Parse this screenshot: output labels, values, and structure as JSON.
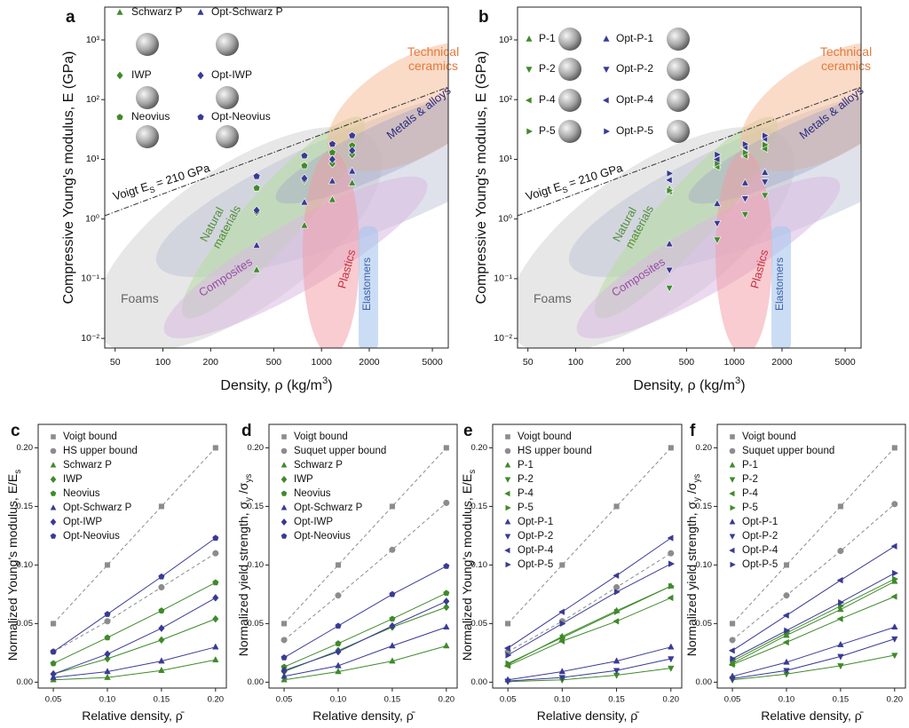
{
  "chart_data": [
    {
      "type": "scatter",
      "panel": "a",
      "xlabel": [
        "Density, ρ (kg/m",
        "3",
        ")"
      ],
      "ylabel": "Compressive Young's modulus, E (GPa)",
      "xscale": "log",
      "yscale": "log",
      "xlim": [
        43,
        6300
      ],
      "ylim": [
        0.0069,
        3550
      ],
      "xticks": [
        50,
        100,
        200,
        500,
        1000,
        2000,
        5000
      ],
      "yticks": [
        {
          "value": 0.01,
          "label": "10⁻²"
        },
        {
          "value": 0.1,
          "label": "10⁻¹"
        },
        {
          "value": 1,
          "label": "10⁰"
        },
        {
          "value": 10,
          "label": "10¹"
        },
        {
          "value": 100,
          "label": "10²"
        },
        {
          "value": 1000,
          "label": "10³"
        }
      ],
      "voigt_label": [
        "Voigt E",
        "S",
        " = 210 GPa"
      ],
      "annotations": [
        [
          "Foams"
        ],
        [
          "Natural",
          "materials"
        ],
        [
          "Composites"
        ],
        [
          "Plastics"
        ],
        [
          "Elastomers"
        ],
        [
          "Metals & alloys"
        ],
        [
          "Technical",
          "ceramics"
        ]
      ],
      "x": [
        390,
        780,
        1170,
        1560
      ],
      "series": [
        {
          "name": "Schwarz P",
          "color": "#3f8a2a",
          "marker": "triangle-up",
          "values": [
            0.14,
            0.78,
            2.1,
            4.0
          ]
        },
        {
          "name": "IWP",
          "color": "#3f8a2a",
          "marker": "diamond",
          "values": [
            1.3,
            4.5,
            8.5,
            12
          ]
        },
        {
          "name": "Neovius",
          "color": "#3f8a2a",
          "marker": "pentagon",
          "values": [
            3.3,
            7.8,
            13,
            17
          ]
        },
        {
          "name": "Opt-Schwarz P",
          "color": "#3a3a96",
          "marker": "triangle-up",
          "values": [
            0.36,
            1.9,
            4.3,
            6.3
          ]
        },
        {
          "name": "Opt-IWP",
          "color": "#3a3a96",
          "marker": "diamond",
          "values": [
            1.4,
            4.8,
            10,
            14
          ]
        },
        {
          "name": "Opt-Neovius",
          "color": "#3a3a96",
          "marker": "pentagon",
          "values": [
            5.2,
            11.5,
            18,
            25
          ]
        }
      ]
    },
    {
      "type": "scatter",
      "panel": "b",
      "xlabel": [
        "Density, ρ (kg/m",
        "3",
        ")"
      ],
      "ylabel": "Compressive Young's modulus, E (GPa)",
      "xscale": "log",
      "yscale": "log",
      "xlim": [
        43,
        6300
      ],
      "ylim": [
        0.0069,
        3550
      ],
      "xticks": [
        50,
        100,
        200,
        500,
        1000,
        2000,
        5000
      ],
      "yticks": [
        {
          "value": 0.01,
          "label": "10⁻²"
        },
        {
          "value": 0.1,
          "label": "10⁻¹"
        },
        {
          "value": 1,
          "label": "10⁰"
        },
        {
          "value": 10,
          "label": "10¹"
        },
        {
          "value": 100,
          "label": "10²"
        },
        {
          "value": 1000,
          "label": "10³"
        }
      ],
      "voigt_label": [
        "Voigt E",
        "S",
        " = 210 GPa"
      ],
      "annotations": [
        [
          "Foams"
        ],
        [
          "Natural",
          "materials"
        ],
        [
          "Composites"
        ],
        [
          "Plastics"
        ],
        [
          "Elastomers"
        ],
        [
          "Metals & alloys"
        ],
        [
          "Technical",
          "ceramics"
        ]
      ],
      "x": [
        390,
        780,
        1170,
        1560
      ],
      "series": [
        {
          "name": "P-1",
          "color": "#3f8a2a",
          "marker": "triangle-up",
          "values": [
            3.2,
            8,
            12,
            17
          ]
        },
        {
          "name": "P-2",
          "color": "#3f8a2a",
          "marker": "triangle-down",
          "values": [
            0.07,
            0.45,
            1.2,
            2.5
          ]
        },
        {
          "name": "P-4",
          "color": "#3f8a2a",
          "marker": "triangle-left",
          "values": [
            2.9,
            7.5,
            11.5,
            15
          ]
        },
        {
          "name": "P-5",
          "color": "#3f8a2a",
          "marker": "triangle-right",
          "values": [
            3.0,
            8.5,
            13,
            17.5
          ]
        },
        {
          "name": "Opt-P-1",
          "color": "#3a3a96",
          "marker": "triangle-up",
          "values": [
            0.38,
            1.8,
            4,
            6
          ]
        },
        {
          "name": "Opt-P-2",
          "color": "#3a3a96",
          "marker": "triangle-down",
          "values": [
            0.14,
            0.85,
            2.2,
            4.2
          ]
        },
        {
          "name": "Opt-P-4",
          "color": "#3a3a96",
          "marker": "triangle-left",
          "values": [
            4.5,
            10,
            16,
            22
          ]
        },
        {
          "name": "Opt-P-5",
          "color": "#3a3a96",
          "marker": "triangle-right",
          "values": [
            5.8,
            12,
            18,
            25
          ]
        }
      ]
    },
    {
      "type": "line",
      "panel": "c",
      "xlabel": [
        "Relative density, ρ̄"
      ],
      "ylabel": [
        "Normalized Young's modulus, E/E",
        "s"
      ],
      "xlim": [
        0.036,
        0.21
      ],
      "ylim": [
        -0.005,
        0.22
      ],
      "xticks": [
        {
          "value": 0.05,
          "label": "0.05"
        },
        {
          "value": 0.1,
          "label": "0.10"
        },
        {
          "value": 0.15,
          "label": "0.15"
        },
        {
          "value": 0.2,
          "label": "0.20"
        }
      ],
      "yticks": [
        {
          "value": 0,
          "label": "0.00"
        },
        {
          "value": 0.05,
          "label": "0.05"
        },
        {
          "value": 0.1,
          "label": "0.10"
        },
        {
          "value": 0.15,
          "label": "0.15"
        },
        {
          "value": 0.2,
          "label": "0.20"
        }
      ],
      "x": [
        0.05,
        0.1,
        0.15,
        0.2
      ],
      "series": [
        {
          "name": "Voigt bound",
          "color": "#8c8c8c",
          "marker": "square",
          "dashed": true,
          "values": [
            0.05,
            0.1,
            0.15,
            0.2
          ]
        },
        {
          "name": "HS upper bound",
          "color": "#8c8c8c",
          "marker": "circle",
          "dashed": true,
          "values": [
            0.026,
            0.052,
            0.081,
            0.11
          ]
        },
        {
          "name": "Schwarz P",
          "color": "#3f8a2a",
          "marker": "triangle-up",
          "values": [
            0.002,
            0.004,
            0.01,
            0.019
          ]
        },
        {
          "name": "IWP",
          "color": "#3f8a2a",
          "marker": "diamond",
          "values": [
            0.007,
            0.02,
            0.036,
            0.054
          ]
        },
        {
          "name": "Neovius",
          "color": "#3f8a2a",
          "marker": "pentagon",
          "values": [
            0.016,
            0.038,
            0.061,
            0.085
          ]
        },
        {
          "name": "Opt-Schwarz P",
          "color": "#3a3a96",
          "marker": "triangle-up",
          "values": [
            0.004,
            0.009,
            0.018,
            0.03
          ]
        },
        {
          "name": "Opt-IWP",
          "color": "#3a3a96",
          "marker": "diamond",
          "values": [
            0.007,
            0.024,
            0.046,
            0.072
          ]
        },
        {
          "name": "Opt-Neovius",
          "color": "#3a3a96",
          "marker": "pentagon",
          "values": [
            0.026,
            0.058,
            0.09,
            0.123
          ]
        }
      ]
    },
    {
      "type": "line",
      "panel": "d",
      "xlabel": [
        "Relative density, ρ̄"
      ],
      "ylabel": [
        "Normalized yield strength, σ",
        "y",
        " /σ",
        "ys"
      ],
      "xlim": [
        0.036,
        0.21
      ],
      "ylim": [
        -0.005,
        0.22
      ],
      "xticks": [
        {
          "value": 0.05,
          "label": "0.05"
        },
        {
          "value": 0.1,
          "label": "0.10"
        },
        {
          "value": 0.15,
          "label": "0.15"
        },
        {
          "value": 0.2,
          "label": "0.20"
        }
      ],
      "yticks": [
        {
          "value": 0,
          "label": "0.00"
        },
        {
          "value": 0.05,
          "label": "0.05"
        },
        {
          "value": 0.1,
          "label": "0.10"
        },
        {
          "value": 0.15,
          "label": "0.15"
        },
        {
          "value": 0.2,
          "label": "0.20"
        }
      ],
      "x": [
        0.05,
        0.1,
        0.15,
        0.2
      ],
      "series": [
        {
          "name": "Voigt bound",
          "color": "#8c8c8c",
          "marker": "square",
          "dashed": true,
          "values": [
            0.05,
            0.1,
            0.15,
            0.2
          ]
        },
        {
          "name": "Suquet upper bound",
          "color": "#8c8c8c",
          "marker": "circle",
          "dashed": true,
          "values": [
            0.036,
            0.074,
            0.113,
            0.153
          ]
        },
        {
          "name": "Schwarz P",
          "color": "#3f8a2a",
          "marker": "triangle-up",
          "values": [
            0.002,
            0.009,
            0.018,
            0.031
          ]
        },
        {
          "name": "IWP",
          "color": "#3f8a2a",
          "marker": "diamond",
          "values": [
            0.009,
            0.027,
            0.047,
            0.064
          ]
        },
        {
          "name": "Neovius",
          "color": "#3f8a2a",
          "marker": "pentagon",
          "values": [
            0.013,
            0.033,
            0.054,
            0.076
          ]
        },
        {
          "name": "Opt-Schwarz P",
          "color": "#3a3a96",
          "marker": "triangle-up",
          "values": [
            0.005,
            0.014,
            0.031,
            0.047
          ]
        },
        {
          "name": "Opt-IWP",
          "color": "#3a3a96",
          "marker": "diamond",
          "values": [
            0.01,
            0.026,
            0.048,
            0.069
          ]
        },
        {
          "name": "Opt-Neovius",
          "color": "#3a3a96",
          "marker": "pentagon",
          "values": [
            0.021,
            0.048,
            0.075,
            0.099
          ]
        }
      ]
    },
    {
      "type": "line",
      "panel": "e",
      "xlabel": [
        "Relative density, ρ̄"
      ],
      "ylabel": [
        "Normalized Young's modulus, E/E",
        "s"
      ],
      "xlim": [
        0.036,
        0.21
      ],
      "ylim": [
        -0.005,
        0.22
      ],
      "xticks": [
        {
          "value": 0.05,
          "label": "0.05"
        },
        {
          "value": 0.1,
          "label": "0.10"
        },
        {
          "value": 0.15,
          "label": "0.15"
        },
        {
          "value": 0.2,
          "label": "0.20"
        }
      ],
      "yticks": [
        {
          "value": 0,
          "label": "0.00"
        },
        {
          "value": 0.05,
          "label": "0.05"
        },
        {
          "value": 0.1,
          "label": "0.10"
        },
        {
          "value": 0.15,
          "label": "0.15"
        },
        {
          "value": 0.2,
          "label": "0.20"
        }
      ],
      "x": [
        0.05,
        0.1,
        0.15,
        0.2
      ],
      "series": [
        {
          "name": "Voigt bound",
          "color": "#8c8c8c",
          "marker": "square",
          "dashed": true,
          "values": [
            0.05,
            0.1,
            0.15,
            0.2
          ]
        },
        {
          "name": "HS upper bound",
          "color": "#8c8c8c",
          "marker": "circle",
          "dashed": true,
          "values": [
            0.026,
            0.052,
            0.081,
            0.11
          ]
        },
        {
          "name": "P-1",
          "color": "#3f8a2a",
          "marker": "triangle-up",
          "values": [
            0.015,
            0.039,
            0.061,
            0.082
          ]
        },
        {
          "name": "P-2",
          "color": "#3f8a2a",
          "marker": "triangle-down",
          "values": [
            0.0005,
            0.002,
            0.006,
            0.012
          ]
        },
        {
          "name": "P-4",
          "color": "#3f8a2a",
          "marker": "triangle-left",
          "values": [
            0.014,
            0.035,
            0.052,
            0.072
          ]
        },
        {
          "name": "P-5",
          "color": "#3f8a2a",
          "marker": "triangle-right",
          "values": [
            0.016,
            0.038,
            0.06,
            0.082
          ]
        },
        {
          "name": "Opt-P-1",
          "color": "#3a3a96",
          "marker": "triangle-up",
          "values": [
            0.002,
            0.009,
            0.018,
            0.03
          ]
        },
        {
          "name": "Opt-P-2",
          "color": "#3a3a96",
          "marker": "triangle-down",
          "values": [
            0.001,
            0.004,
            0.01,
            0.02
          ]
        },
        {
          "name": "Opt-P-4",
          "color": "#3a3a96",
          "marker": "triangle-left",
          "values": [
            0.029,
            0.06,
            0.091,
            0.123
          ]
        },
        {
          "name": "Opt-P-5",
          "color": "#3a3a96",
          "marker": "triangle-right",
          "values": [
            0.023,
            0.05,
            0.077,
            0.101
          ]
        }
      ]
    },
    {
      "type": "line",
      "panel": "f",
      "xlabel": [
        "Relative density, ρ̄"
      ],
      "ylabel": [
        "Normalized yield strength, σ",
        "y",
        " /σ",
        "ys"
      ],
      "xlim": [
        0.036,
        0.21
      ],
      "ylim": [
        -0.005,
        0.22
      ],
      "xticks": [
        {
          "value": 0.05,
          "label": "0.05"
        },
        {
          "value": 0.1,
          "label": "0.10"
        },
        {
          "value": 0.15,
          "label": "0.15"
        },
        {
          "value": 0.2,
          "label": "0.20"
        }
      ],
      "yticks": [
        {
          "value": 0,
          "label": "0.00"
        },
        {
          "value": 0.05,
          "label": "0.05"
        },
        {
          "value": 0.1,
          "label": "0.10"
        },
        {
          "value": 0.15,
          "label": "0.15"
        },
        {
          "value": 0.2,
          "label": "0.20"
        }
      ],
      "x": [
        0.05,
        0.1,
        0.15,
        0.2
      ],
      "series": [
        {
          "name": "Voigt bound",
          "color": "#8c8c8c",
          "marker": "square",
          "dashed": true,
          "values": [
            0.05,
            0.1,
            0.15,
            0.2
          ]
        },
        {
          "name": "Suquet upper bound",
          "color": "#8c8c8c",
          "marker": "circle",
          "dashed": true,
          "values": [
            0.036,
            0.074,
            0.112,
            0.152
          ]
        },
        {
          "name": "P-1",
          "color": "#3f8a2a",
          "marker": "triangle-up",
          "values": [
            0.016,
            0.04,
            0.062,
            0.086
          ]
        },
        {
          "name": "P-2",
          "color": "#3f8a2a",
          "marker": "triangle-down",
          "values": [
            0.002,
            0.007,
            0.014,
            0.023
          ]
        },
        {
          "name": "P-4",
          "color": "#3f8a2a",
          "marker": "triangle-left",
          "values": [
            0.015,
            0.034,
            0.054,
            0.073
          ]
        },
        {
          "name": "P-5",
          "color": "#3f8a2a",
          "marker": "triangle-right",
          "values": [
            0.018,
            0.042,
            0.065,
            0.088
          ]
        },
        {
          "name": "Opt-P-1",
          "color": "#3a3a96",
          "marker": "triangle-up",
          "values": [
            0.005,
            0.017,
            0.032,
            0.047
          ]
        },
        {
          "name": "Opt-P-2",
          "color": "#3a3a96",
          "marker": "triangle-down",
          "values": [
            0.003,
            0.01,
            0.022,
            0.037
          ]
        },
        {
          "name": "Opt-P-4",
          "color": "#3a3a96",
          "marker": "triangle-left",
          "values": [
            0.027,
            0.057,
            0.087,
            0.116
          ]
        },
        {
          "name": "Opt-P-5",
          "color": "#3a3a96",
          "marker": "triangle-right",
          "values": [
            0.02,
            0.044,
            0.068,
            0.093
          ]
        }
      ]
    }
  ]
}
